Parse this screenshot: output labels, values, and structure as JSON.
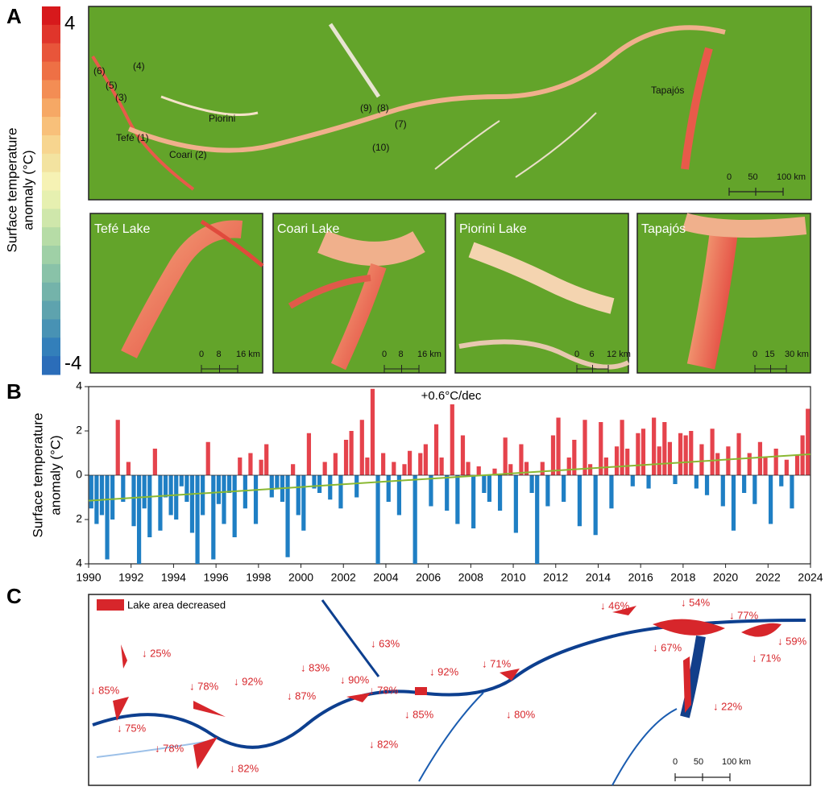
{
  "panel_labels": [
    "A",
    "B",
    "C"
  ],
  "colorbar": {
    "label": [
      "Surface temperature",
      "anomaly (°C)"
    ],
    "vmax": 4,
    "vmin": -4,
    "colors": [
      "#d7191c",
      "#e0352b",
      "#e8553a",
      "#ee7045",
      "#f38d54",
      "#f6a865",
      "#f8c07a",
      "#f7d58f",
      "#f3e3a0",
      "#f6f2b4",
      "#e6f0b0",
      "#cfe7ab",
      "#b6dca6",
      "#9fd0a6",
      "#89c2a8",
      "#74b3aa",
      "#5ea3ae",
      "#4892b4",
      "#337fba",
      "#2b6db9"
    ]
  },
  "map_a": {
    "labels": [
      "(6)",
      "(5)",
      "(4)",
      "(3)",
      "Tefé (1)",
      "Piorini",
      "Coari (2)",
      "(9)",
      "(8)",
      "(7)",
      "(10)",
      "Tapajós"
    ],
    "scale_bar": [
      "0",
      "50",
      "100 km"
    ]
  },
  "insets": [
    {
      "title": "Tefé Lake",
      "scale_bar": [
        "0",
        "8",
        "16 km"
      ]
    },
    {
      "title": "Coari Lake",
      "scale_bar": [
        "0",
        "8",
        "16 km"
      ]
    },
    {
      "title": "Piorini Lake",
      "scale_bar": [
        "0",
        "6",
        "12 km"
      ]
    },
    {
      "title": "Tapajós",
      "scale_bar": [
        "0",
        "15",
        "30 km"
      ]
    }
  ],
  "chart_data": {
    "type": "bar",
    "ylabel": [
      "Surface temperature",
      "anomaly (°C)"
    ],
    "annotation": "+0.6°C/dec",
    "colors": {
      "positive": "#e5434c",
      "negative": "#1f7fc4"
    },
    "xlim": [
      1990,
      2024
    ],
    "xticks": [
      1990,
      1992,
      1994,
      1996,
      1998,
      2000,
      2002,
      2004,
      2006,
      2008,
      2010,
      2012,
      2014,
      2016,
      2018,
      2020,
      2022,
      2024
    ],
    "ylim": [
      -4,
      4
    ],
    "yticks": [
      {
        "value": -4,
        "label": "4"
      },
      {
        "value": -2,
        "label": "2"
      },
      0,
      2,
      4
    ],
    "x": [
      1990.125,
      1990.375,
      1990.625,
      1990.875,
      1991.125,
      1991.375,
      1991.625,
      1991.875,
      1992.125,
      1992.375,
      1992.625,
      1992.875,
      1993.125,
      1993.375,
      1993.625,
      1993.875,
      1994.125,
      1994.375,
      1994.625,
      1994.875,
      1995.125,
      1995.375,
      1995.625,
      1995.875,
      1996.125,
      1996.375,
      1996.625,
      1996.875,
      1997.125,
      1997.375,
      1997.625,
      1997.875,
      1998.125,
      1998.375,
      1998.625,
      1998.875,
      1999.125,
      1999.375,
      1999.625,
      1999.875,
      2000.125,
      2000.375,
      2000.625,
      2000.875,
      2001.125,
      2001.375,
      2001.625,
      2001.875,
      2002.125,
      2002.375,
      2002.625,
      2002.875,
      2003.125,
      2003.375,
      2003.625,
      2003.875,
      2004.125,
      2004.375,
      2004.625,
      2004.875,
      2005.125,
      2005.375,
      2005.625,
      2005.875,
      2006.125,
      2006.375,
      2006.625,
      2006.875,
      2007.125,
      2007.375,
      2007.625,
      2007.875,
      2008.125,
      2008.375,
      2008.625,
      2008.875,
      2009.125,
      2009.375,
      2009.625,
      2009.875,
      2010.125,
      2010.375,
      2010.625,
      2010.875,
      2011.125,
      2011.375,
      2011.625,
      2011.875,
      2012.125,
      2012.375,
      2012.625,
      2012.875,
      2013.125,
      2013.375,
      2013.625,
      2013.875,
      2014.125,
      2014.375,
      2014.625,
      2014.875,
      2015.125,
      2015.375,
      2015.625,
      2015.875,
      2016.125,
      2016.375,
      2016.625,
      2016.875,
      2017.125,
      2017.375,
      2017.625,
      2017.875,
      2018.125,
      2018.375,
      2018.625,
      2018.875,
      2019.125,
      2019.375,
      2019.625,
      2019.875,
      2020.125,
      2020.375,
      2020.625,
      2020.875,
      2021.125,
      2021.375,
      2021.625,
      2021.875,
      2022.125,
      2022.375,
      2022.625,
      2022.875,
      2023.125,
      2023.375,
      2023.625,
      2023.875
    ],
    "values": [
      -1.5,
      -2.2,
      -1.8,
      -3.8,
      -2.0,
      2.5,
      -1.2,
      0.6,
      -2.3,
      -4.0,
      -1.5,
      -2.8,
      1.2,
      -2.5,
      -1.0,
      -1.8,
      -2.0,
      -0.5,
      -1.2,
      -2.6,
      -4.0,
      -1.8,
      1.5,
      -3.8,
      -1.3,
      -2.2,
      -0.8,
      -2.8,
      0.8,
      -1.5,
      1.0,
      -2.2,
      0.7,
      1.4,
      -1.0,
      -0.6,
      -1.2,
      -3.7,
      0.5,
      -1.8,
      -2.5,
      1.9,
      -0.6,
      -0.8,
      0.6,
      -1.1,
      1.0,
      -1.5,
      1.6,
      2.0,
      -1.0,
      2.5,
      0.8,
      3.9,
      -4.0,
      1.0,
      -1.2,
      0.6,
      -1.8,
      0.5,
      1.1,
      -4.0,
      1.0,
      1.4,
      -1.4,
      2.3,
      0.8,
      -1.6,
      3.2,
      -2.2,
      1.8,
      0.6,
      -2.4,
      0.4,
      -0.8,
      -1.2,
      0.3,
      -1.6,
      1.7,
      0.5,
      -2.6,
      1.4,
      0.6,
      -0.8,
      -4.0,
      0.6,
      -1.4,
      1.8,
      2.6,
      -1.2,
      0.8,
      1.6,
      -2.3,
      2.5,
      0.5,
      -2.7,
      2.4,
      0.8,
      -1.5,
      1.3,
      2.5,
      1.2,
      -0.5,
      1.9,
      2.1,
      -0.6,
      2.6,
      1.3,
      2.4,
      1.5,
      -0.4,
      1.9,
      1.8,
      2.0,
      -0.6,
      1.4,
      -0.9,
      2.1,
      1.0,
      -1.4,
      1.3,
      -2.5,
      1.9,
      -0.8,
      1.0,
      -1.3,
      1.5,
      0.8,
      -2.2,
      1.2,
      -0.5,
      0.7,
      -1.5,
      0.9,
      1.8,
      3.0
    ],
    "trend": {
      "x": [
        1990,
        2024
      ],
      "values": [
        -1.15,
        0.95
      ],
      "color": "#8ab832"
    }
  },
  "map_c": {
    "legend": "Lake area decreased",
    "legend_color": "#d7262b",
    "labels": [
      "↓ 25%",
      "↓ 85%",
      "↓ 75%",
      "↓ 78%",
      "↓ 82%",
      "↓ 78%",
      "↓ 92%",
      "↓ 87%",
      "↓ 83%",
      "↓ 90%",
      "↓ 63%",
      "↓ 78%",
      "↓ 85%",
      "↓ 82%",
      "↓ 92%",
      "↓ 71%",
      "↓ 80%",
      "↓ 46%",
      "↓ 54%",
      "↓ 77%",
      "↓ 67%",
      "↓ 59%",
      "↓ 71%",
      "↓ 22%"
    ],
    "scale_bar": [
      "0",
      "50",
      "100 km"
    ]
  }
}
